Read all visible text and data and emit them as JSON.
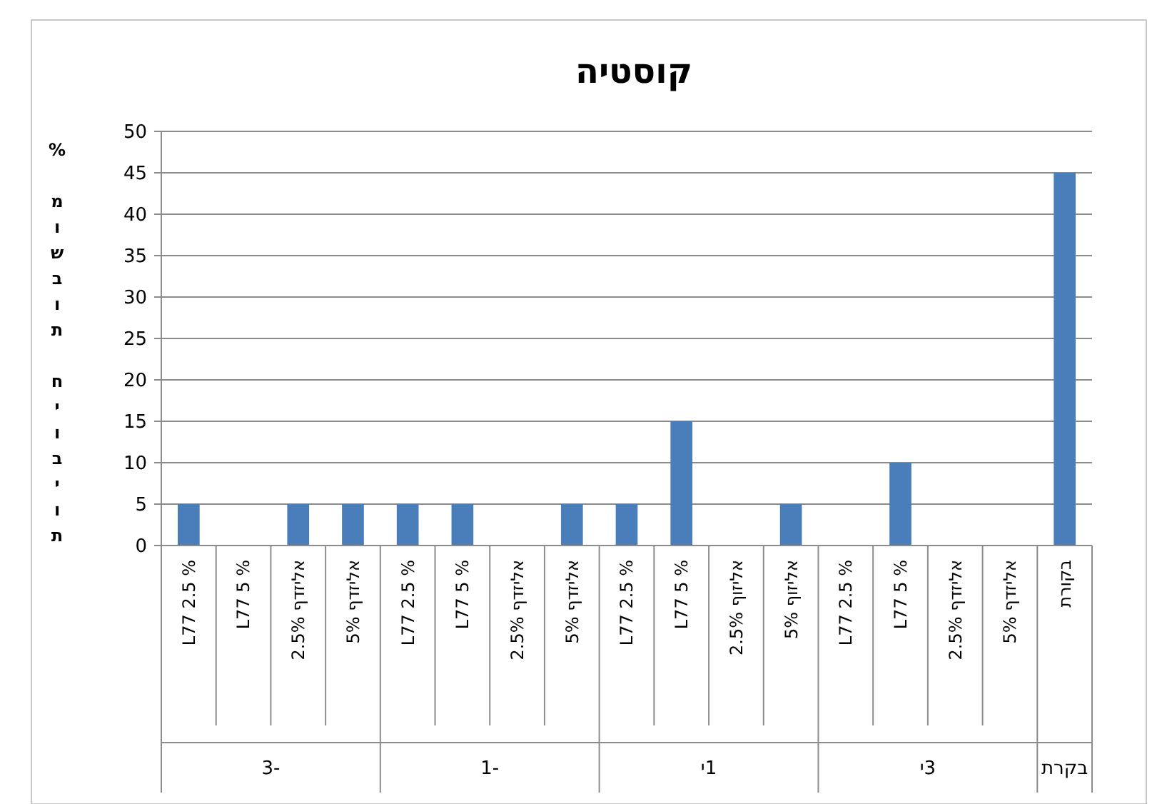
{
  "chart_data": {
    "type": "bar",
    "title": "קוסטיה",
    "ylabel": "% מושבות חיוביות",
    "categories": [
      "L77 2.5 %",
      "L77 5 %",
      "אליזדף 2.5%",
      "אליזדף 5%",
      "L77 2.5 %",
      "L77 5 %",
      "אליזדף 2.5%",
      "אליזדף 5%",
      "L77 2.5 %",
      "L77 5 %",
      "אליזוף 2.5%",
      "אליזוף 5%",
      "L77 2.5 %",
      "L77 5 %",
      "אליזדף 2.5%",
      "אליזדף 5%",
      "בקורת"
    ],
    "values": [
      5,
      0,
      5,
      5,
      5,
      5,
      0,
      5,
      5,
      15,
      0,
      5,
      0,
      10,
      0,
      0,
      45
    ],
    "color": "#4a7ebb",
    "ylim": [
      0,
      50
    ],
    "yticks": [
      0,
      5,
      10,
      15,
      20,
      25,
      30,
      35,
      40,
      45,
      50
    ],
    "grid": "y",
    "annotations": [
      "3-",
      "1-",
      "1י",
      "3י",
      "בקרת"
    ]
  }
}
